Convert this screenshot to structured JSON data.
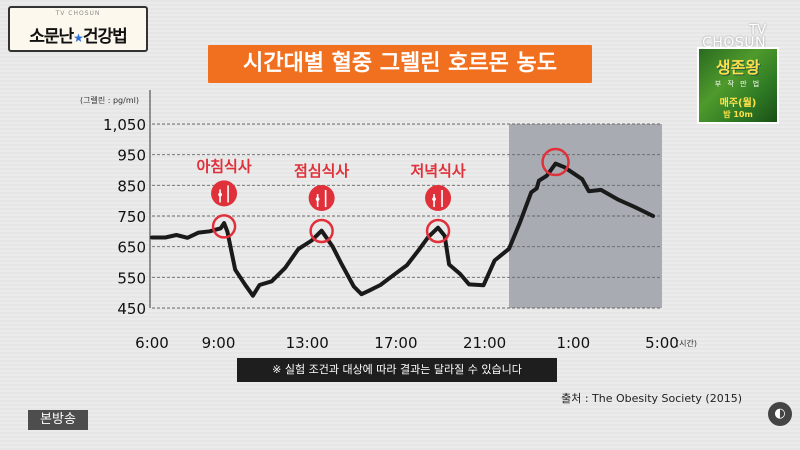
{
  "header": {
    "logo_subtitle": "TV CHOSUN",
    "logo_left": "소문난",
    "logo_right": "건강법",
    "title": "시간대별 혈중 그렐린 호르몬 농도",
    "channel_line1": "TV",
    "channel_line2": "CHOSUN"
  },
  "show_badge": {
    "title": "생존왕",
    "subtitle": "부 작 만 법",
    "schedule": "매주(월)",
    "time": "밤 10m"
  },
  "chart_data": {
    "type": "line",
    "ylabel": "(그렐린 : pg/ml)",
    "xlabel": "(시간)",
    "ylim": [
      450,
      1050
    ],
    "yticks": [
      "1,050",
      "950",
      "850",
      "750",
      "650",
      "550",
      "450"
    ],
    "ytick_values": [
      1050,
      950,
      850,
      750,
      650,
      550,
      450
    ],
    "xticks": [
      "6:00",
      "9:00",
      "13:00",
      "17:00",
      "21:00",
      "1:00",
      "5:00"
    ],
    "xtick_hours": [
      6,
      9,
      13,
      17,
      21,
      25,
      29
    ],
    "xlim": [
      6,
      29
    ],
    "line_color": "#1a1a1a",
    "grid": "horizontal dashed",
    "night_shade_start_hour": 22.1,
    "series": [
      {
        "points": [
          [
            6.0,
            680
          ],
          [
            6.6,
            680
          ],
          [
            7.1,
            688
          ],
          [
            7.6,
            679
          ],
          [
            8.1,
            696
          ],
          [
            8.6,
            700
          ],
          [
            9.1,
            710
          ],
          [
            9.25,
            727
          ],
          [
            9.4,
            699
          ],
          [
            9.55,
            646
          ],
          [
            9.75,
            575
          ],
          [
            10.2,
            526
          ],
          [
            10.55,
            490
          ],
          [
            10.85,
            525
          ],
          [
            11.4,
            537
          ],
          [
            12.0,
            580
          ],
          [
            12.6,
            642
          ],
          [
            13.2,
            670
          ],
          [
            13.65,
            702
          ],
          [
            14.15,
            650
          ],
          [
            14.55,
            593
          ],
          [
            15.1,
            520
          ],
          [
            15.45,
            495
          ],
          [
            15.75,
            505
          ],
          [
            16.3,
            525
          ],
          [
            17.0,
            563
          ],
          [
            17.5,
            590
          ],
          [
            18.05,
            641
          ],
          [
            18.45,
            681
          ],
          [
            18.9,
            712
          ],
          [
            19.2,
            685
          ],
          [
            19.4,
            592
          ],
          [
            19.9,
            561
          ],
          [
            20.3,
            527
          ],
          [
            20.95,
            524
          ],
          [
            21.45,
            605
          ],
          [
            22.1,
            643
          ],
          [
            22.6,
            730
          ],
          [
            23.1,
            827
          ],
          [
            23.35,
            840
          ],
          [
            23.45,
            865
          ],
          [
            23.8,
            881
          ],
          [
            24.2,
            921
          ],
          [
            24.6,
            909
          ],
          [
            25.4,
            870
          ],
          [
            25.7,
            831
          ],
          [
            26.25,
            835
          ],
          [
            27.0,
            804
          ],
          [
            27.75,
            780
          ],
          [
            28.6,
            750
          ]
        ]
      }
    ],
    "annotations": [
      {
        "label": "아침식사",
        "hour": 9.25,
        "value": 716
      },
      {
        "label": "점심식사",
        "hour": 13.65,
        "value": 701
      },
      {
        "label": "저녁식사",
        "hour": 18.9,
        "value": 701
      }
    ],
    "peak_marker": {
      "hour": 24.2,
      "value": 926
    },
    "accent_color": "#e0303a"
  },
  "note": "※ 실험 조건과 대상에 따라 결과는 달라질 수 있습니다",
  "source": "출처 : The Obesity Society (2015)",
  "broadcast_tag": "본방송"
}
